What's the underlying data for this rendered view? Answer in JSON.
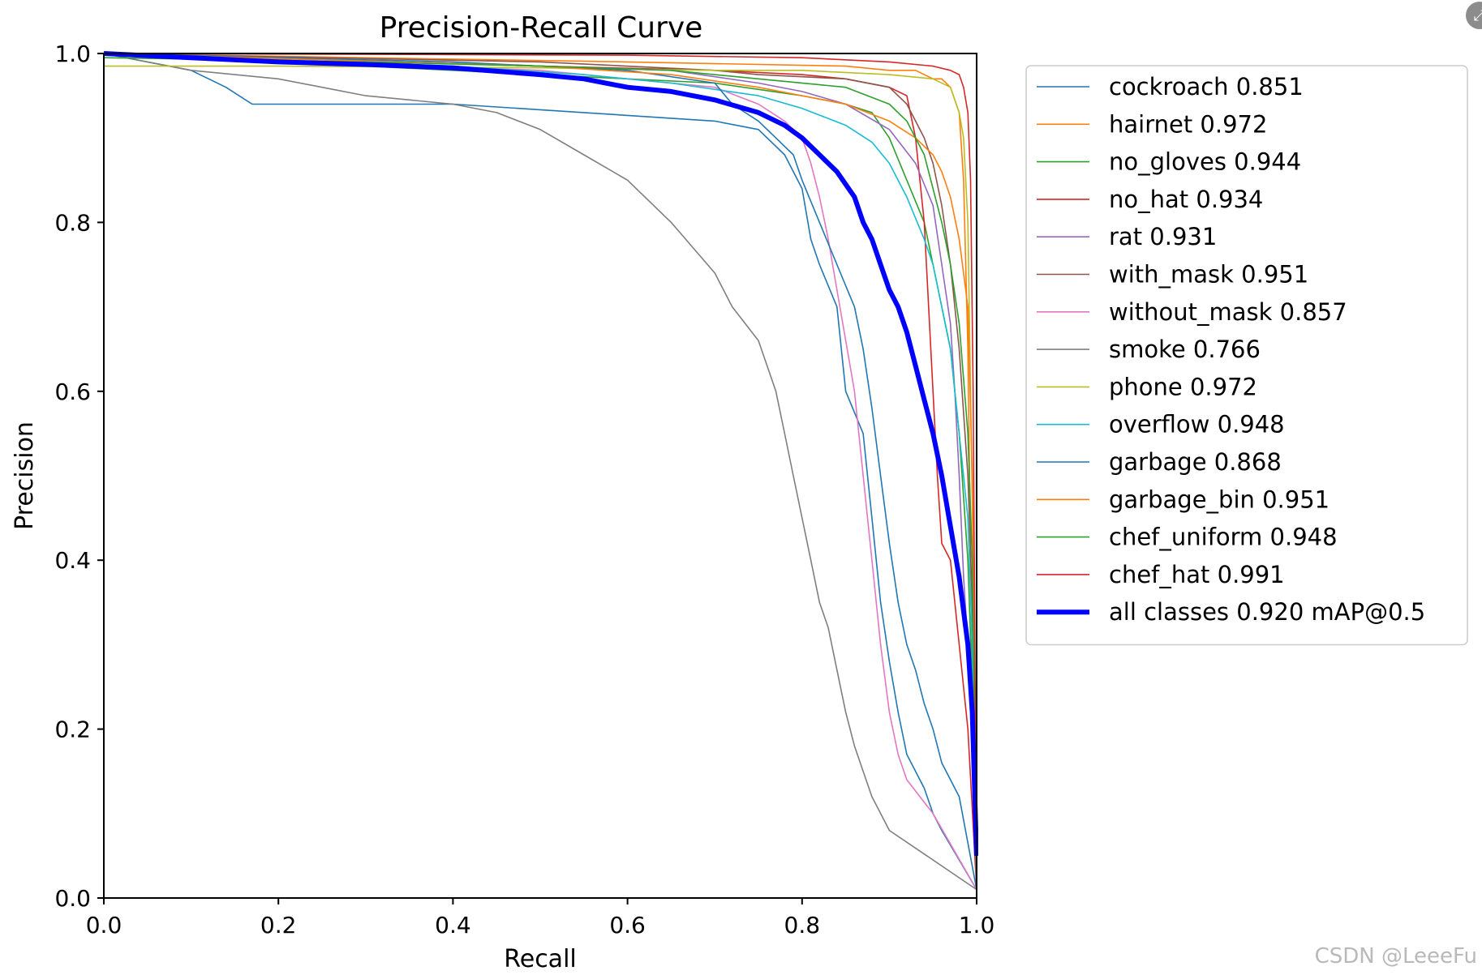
{
  "chart_data": {
    "type": "line",
    "title": "Precision-Recall Curve",
    "xlabel": "Recall",
    "ylabel": "Precision",
    "xlim": [
      0,
      1
    ],
    "ylim": [
      0,
      1
    ],
    "xticks": [
      "0.0",
      "0.2",
      "0.4",
      "0.6",
      "0.8",
      "1.0"
    ],
    "yticks": [
      "0.0",
      "0.2",
      "0.4",
      "0.6",
      "0.8",
      "1.0"
    ],
    "grid": false,
    "legend_position": "outside-right",
    "series": [
      {
        "name": "cockroach 0.851",
        "color": "#1f77b4",
        "width": 1.6,
        "points": [
          [
            0,
            1
          ],
          [
            0.1,
            0.98
          ],
          [
            0.14,
            0.96
          ],
          [
            0.17,
            0.94
          ],
          [
            0.4,
            0.94
          ],
          [
            0.55,
            0.93
          ],
          [
            0.7,
            0.92
          ],
          [
            0.75,
            0.91
          ],
          [
            0.78,
            0.88
          ],
          [
            0.8,
            0.84
          ],
          [
            0.81,
            0.78
          ],
          [
            0.82,
            0.75
          ],
          [
            0.84,
            0.7
          ],
          [
            0.85,
            0.6
          ],
          [
            0.87,
            0.55
          ],
          [
            0.88,
            0.45
          ],
          [
            0.89,
            0.35
          ],
          [
            0.9,
            0.28
          ],
          [
            0.91,
            0.22
          ],
          [
            0.92,
            0.17
          ],
          [
            0.93,
            0.15
          ],
          [
            0.94,
            0.13
          ],
          [
            0.95,
            0.1
          ],
          [
            0.96,
            0.08
          ],
          [
            1,
            0.01
          ]
        ]
      },
      {
        "name": "hairnet 0.972",
        "color": "#ff7f0e",
        "width": 1.6,
        "points": [
          [
            0,
            1
          ],
          [
            0.6,
            0.99
          ],
          [
            0.85,
            0.985
          ],
          [
            0.9,
            0.98
          ],
          [
            0.93,
            0.98
          ],
          [
            0.95,
            0.97
          ],
          [
            0.96,
            0.97
          ],
          [
            0.97,
            0.96
          ],
          [
            0.98,
            0.93
          ],
          [
            0.985,
            0.85
          ],
          [
            0.99,
            0.65
          ],
          [
            0.993,
            0.4
          ],
          [
            0.996,
            0.2
          ],
          [
            1,
            0.01
          ]
        ]
      },
      {
        "name": "no_gloves 0.944",
        "color": "#2ca02c",
        "width": 1.6,
        "points": [
          [
            0,
            1
          ],
          [
            0.4,
            0.98
          ],
          [
            0.5,
            0.975
          ],
          [
            0.6,
            0.97
          ],
          [
            0.7,
            0.965
          ],
          [
            0.8,
            0.95
          ],
          [
            0.85,
            0.94
          ],
          [
            0.88,
            0.93
          ],
          [
            0.9,
            0.9
          ],
          [
            0.92,
            0.85
          ],
          [
            0.94,
            0.8
          ],
          [
            0.95,
            0.75
          ],
          [
            0.96,
            0.7
          ],
          [
            0.97,
            0.65
          ],
          [
            0.98,
            0.55
          ],
          [
            0.99,
            0.4
          ],
          [
            0.995,
            0.25
          ],
          [
            1,
            0.01
          ]
        ]
      },
      {
        "name": "no_hat 0.934",
        "color": "#d62728",
        "width": 1.6,
        "points": [
          [
            0,
            1
          ],
          [
            0.5,
            0.985
          ],
          [
            0.7,
            0.98
          ],
          [
            0.8,
            0.975
          ],
          [
            0.85,
            0.97
          ],
          [
            0.9,
            0.96
          ],
          [
            0.92,
            0.95
          ],
          [
            0.93,
            0.9
          ],
          [
            0.94,
            0.8
          ],
          [
            0.945,
            0.7
          ],
          [
            0.95,
            0.6
          ],
          [
            0.955,
            0.5
          ],
          [
            0.96,
            0.42
          ],
          [
            0.97,
            0.4
          ],
          [
            0.975,
            0.35
          ],
          [
            0.98,
            0.3
          ],
          [
            0.99,
            0.2
          ],
          [
            1,
            0.01
          ]
        ]
      },
      {
        "name": "rat 0.931",
        "color": "#9467bd",
        "width": 1.6,
        "points": [
          [
            0,
            1
          ],
          [
            0.5,
            0.985
          ],
          [
            0.65,
            0.98
          ],
          [
            0.75,
            0.965
          ],
          [
            0.8,
            0.955
          ],
          [
            0.85,
            0.94
          ],
          [
            0.9,
            0.91
          ],
          [
            0.93,
            0.87
          ],
          [
            0.95,
            0.82
          ],
          [
            0.96,
            0.75
          ],
          [
            0.97,
            0.68
          ],
          [
            0.975,
            0.6
          ],
          [
            0.98,
            0.5
          ],
          [
            0.985,
            0.38
          ],
          [
            0.99,
            0.3
          ],
          [
            0.995,
            0.2
          ],
          [
            1,
            0.01
          ]
        ]
      },
      {
        "name": "with_mask 0.951",
        "color": "#8c564b",
        "width": 1.6,
        "points": [
          [
            0,
            1
          ],
          [
            0.5,
            0.99
          ],
          [
            0.7,
            0.98
          ],
          [
            0.75,
            0.975
          ],
          [
            0.85,
            0.97
          ],
          [
            0.9,
            0.96
          ],
          [
            0.92,
            0.94
          ],
          [
            0.93,
            0.92
          ],
          [
            0.94,
            0.9
          ],
          [
            0.95,
            0.87
          ],
          [
            0.96,
            0.82
          ],
          [
            0.97,
            0.75
          ],
          [
            0.98,
            0.65
          ],
          [
            0.99,
            0.5
          ],
          [
            0.995,
            0.35
          ],
          [
            1,
            0.01
          ]
        ]
      },
      {
        "name": "without_mask 0.857",
        "color": "#e377c2",
        "width": 1.6,
        "points": [
          [
            0,
            1
          ],
          [
            0.5,
            0.98
          ],
          [
            0.6,
            0.97
          ],
          [
            0.7,
            0.96
          ],
          [
            0.75,
            0.94
          ],
          [
            0.78,
            0.92
          ],
          [
            0.8,
            0.9
          ],
          [
            0.81,
            0.87
          ],
          [
            0.82,
            0.83
          ],
          [
            0.83,
            0.78
          ],
          [
            0.84,
            0.72
          ],
          [
            0.85,
            0.66
          ],
          [
            0.86,
            0.6
          ],
          [
            0.87,
            0.5
          ],
          [
            0.875,
            0.45
          ],
          [
            0.88,
            0.4
          ],
          [
            0.89,
            0.3
          ],
          [
            0.9,
            0.22
          ],
          [
            0.91,
            0.17
          ],
          [
            0.92,
            0.14
          ],
          [
            0.95,
            0.1
          ],
          [
            1,
            0.01
          ]
        ]
      },
      {
        "name": "smoke 0.766",
        "color": "#7f7f7f",
        "width": 1.6,
        "points": [
          [
            0,
            1
          ],
          [
            0.1,
            0.98
          ],
          [
            0.2,
            0.97
          ],
          [
            0.25,
            0.96
          ],
          [
            0.3,
            0.95
          ],
          [
            0.4,
            0.94
          ],
          [
            0.45,
            0.93
          ],
          [
            0.5,
            0.91
          ],
          [
            0.55,
            0.88
          ],
          [
            0.6,
            0.85
          ],
          [
            0.65,
            0.8
          ],
          [
            0.7,
            0.74
          ],
          [
            0.72,
            0.7
          ],
          [
            0.75,
            0.66
          ],
          [
            0.77,
            0.6
          ],
          [
            0.78,
            0.55
          ],
          [
            0.79,
            0.5
          ],
          [
            0.8,
            0.45
          ],
          [
            0.81,
            0.4
          ],
          [
            0.82,
            0.35
          ],
          [
            0.83,
            0.32
          ],
          [
            0.84,
            0.27
          ],
          [
            0.85,
            0.22
          ],
          [
            0.86,
            0.18
          ],
          [
            0.87,
            0.15
          ],
          [
            0.88,
            0.12
          ],
          [
            0.9,
            0.08
          ],
          [
            1,
            0.01
          ]
        ]
      },
      {
        "name": "phone 0.972",
        "color": "#bcbd22",
        "width": 1.6,
        "points": [
          [
            0,
            0.985
          ],
          [
            0.2,
            0.985
          ],
          [
            0.5,
            0.983
          ],
          [
            0.7,
            0.98
          ],
          [
            0.8,
            0.98
          ],
          [
            0.9,
            0.975
          ],
          [
            0.95,
            0.97
          ],
          [
            0.97,
            0.96
          ],
          [
            0.98,
            0.93
          ],
          [
            0.985,
            0.9
          ],
          [
            0.99,
            0.8
          ],
          [
            0.993,
            0.6
          ],
          [
            0.996,
            0.4
          ],
          [
            1,
            0.01
          ]
        ]
      },
      {
        "name": "overflow 0.948",
        "color": "#17becf",
        "width": 1.6,
        "points": [
          [
            0,
            1
          ],
          [
            0.4,
            0.985
          ],
          [
            0.55,
            0.975
          ],
          [
            0.65,
            0.965
          ],
          [
            0.75,
            0.95
          ],
          [
            0.8,
            0.935
          ],
          [
            0.85,
            0.915
          ],
          [
            0.88,
            0.895
          ],
          [
            0.9,
            0.87
          ],
          [
            0.92,
            0.83
          ],
          [
            0.94,
            0.78
          ],
          [
            0.95,
            0.75
          ],
          [
            0.96,
            0.7
          ],
          [
            0.97,
            0.65
          ],
          [
            0.98,
            0.55
          ],
          [
            0.99,
            0.45
          ],
          [
            0.995,
            0.3
          ],
          [
            1,
            0.01
          ]
        ]
      },
      {
        "name": "garbage 0.868",
        "color": "#1f77b4",
        "width": 1.6,
        "points": [
          [
            0,
            1
          ],
          [
            0.4,
            0.99
          ],
          [
            0.6,
            0.98
          ],
          [
            0.7,
            0.965
          ],
          [
            0.72,
            0.94
          ],
          [
            0.75,
            0.92
          ],
          [
            0.77,
            0.9
          ],
          [
            0.79,
            0.88
          ],
          [
            0.8,
            0.85
          ],
          [
            0.82,
            0.8
          ],
          [
            0.84,
            0.75
          ],
          [
            0.86,
            0.7
          ],
          [
            0.87,
            0.65
          ],
          [
            0.88,
            0.58
          ],
          [
            0.89,
            0.5
          ],
          [
            0.9,
            0.42
          ],
          [
            0.91,
            0.35
          ],
          [
            0.92,
            0.3
          ],
          [
            0.93,
            0.27
          ],
          [
            0.94,
            0.23
          ],
          [
            0.95,
            0.2
          ],
          [
            0.96,
            0.16
          ],
          [
            0.98,
            0.12
          ],
          [
            1,
            0.01
          ]
        ]
      },
      {
        "name": "garbage_bin 0.951",
        "color": "#ff7f0e",
        "width": 1.6,
        "points": [
          [
            0,
            1
          ],
          [
            0.5,
            0.985
          ],
          [
            0.65,
            0.975
          ],
          [
            0.75,
            0.96
          ],
          [
            0.8,
            0.95
          ],
          [
            0.85,
            0.94
          ],
          [
            0.9,
            0.92
          ],
          [
            0.93,
            0.9
          ],
          [
            0.95,
            0.88
          ],
          [
            0.96,
            0.86
          ],
          [
            0.97,
            0.83
          ],
          [
            0.98,
            0.78
          ],
          [
            0.99,
            0.7
          ],
          [
            0.995,
            0.5
          ],
          [
            1,
            0.01
          ]
        ]
      },
      {
        "name": "chef_uniform 0.948",
        "color": "#2ca02c",
        "width": 1.6,
        "points": [
          [
            0,
            0.995
          ],
          [
            0.3,
            0.99
          ],
          [
            0.5,
            0.985
          ],
          [
            0.65,
            0.98
          ],
          [
            0.75,
            0.97
          ],
          [
            0.85,
            0.96
          ],
          [
            0.9,
            0.94
          ],
          [
            0.92,
            0.92
          ],
          [
            0.94,
            0.88
          ],
          [
            0.95,
            0.84
          ],
          [
            0.96,
            0.8
          ],
          [
            0.97,
            0.75
          ],
          [
            0.98,
            0.68
          ],
          [
            0.99,
            0.55
          ],
          [
            0.995,
            0.4
          ],
          [
            1,
            0.01
          ]
        ]
      },
      {
        "name": "chef_hat 0.991",
        "color": "#d62728",
        "width": 1.6,
        "points": [
          [
            0,
            1
          ],
          [
            0.6,
            0.998
          ],
          [
            0.8,
            0.995
          ],
          [
            0.9,
            0.99
          ],
          [
            0.95,
            0.985
          ],
          [
            0.97,
            0.98
          ],
          [
            0.98,
            0.975
          ],
          [
            0.985,
            0.96
          ],
          [
            0.99,
            0.93
          ],
          [
            0.993,
            0.85
          ],
          [
            0.996,
            0.6
          ],
          [
            0.998,
            0.3
          ],
          [
            1,
            0.01
          ]
        ]
      },
      {
        "name": "all classes 0.920 mAP@0.5",
        "color": "#0000ff",
        "width": 6,
        "points": [
          [
            0,
            1
          ],
          [
            0.1,
            0.995
          ],
          [
            0.2,
            0.99
          ],
          [
            0.3,
            0.987
          ],
          [
            0.4,
            0.983
          ],
          [
            0.5,
            0.975
          ],
          [
            0.55,
            0.97
          ],
          [
            0.6,
            0.96
          ],
          [
            0.65,
            0.955
          ],
          [
            0.7,
            0.945
          ],
          [
            0.75,
            0.93
          ],
          [
            0.78,
            0.915
          ],
          [
            0.8,
            0.9
          ],
          [
            0.82,
            0.88
          ],
          [
            0.84,
            0.86
          ],
          [
            0.86,
            0.83
          ],
          [
            0.87,
            0.8
          ],
          [
            0.88,
            0.78
          ],
          [
            0.89,
            0.75
          ],
          [
            0.9,
            0.72
          ],
          [
            0.91,
            0.7
          ],
          [
            0.92,
            0.67
          ],
          [
            0.93,
            0.63
          ],
          [
            0.94,
            0.59
          ],
          [
            0.95,
            0.55
          ],
          [
            0.96,
            0.5
          ],
          [
            0.97,
            0.44
          ],
          [
            0.98,
            0.38
          ],
          [
            0.99,
            0.3
          ],
          [
            0.995,
            0.22
          ],
          [
            1,
            0.05
          ]
        ]
      }
    ]
  },
  "watermark": "CSDN @LeeeFu",
  "corner_icon": "expand-icon",
  "corner_glyph": "⤢"
}
